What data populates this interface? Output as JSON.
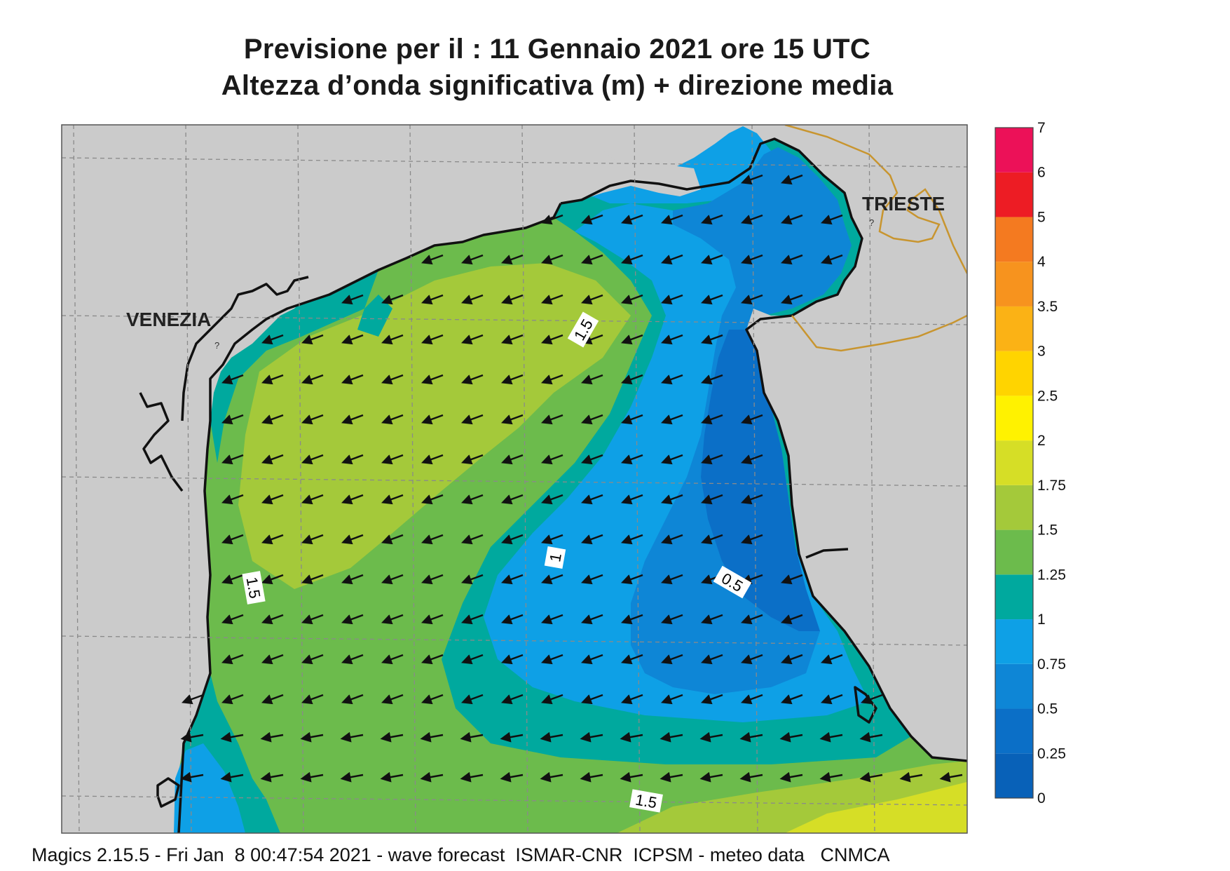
{
  "header": {
    "title_line1": "Previsione per il  :  11  Gennaio  2021   ore 15 UTC",
    "title_line2": "Altezza d’onda significativa (m) + direzione media"
  },
  "map": {
    "land_color": "#cbcbcb",
    "coast_color": "#111111",
    "border_color": "#c8952f",
    "grid_color": "#8a8a8a",
    "places": [
      {
        "name": "VENEZIA"
      },
      {
        "name": "TRIESTE"
      }
    ],
    "unknown_marks": [
      "?",
      "?"
    ],
    "contour_labels": [
      "1.5",
      "1.5",
      "1",
      "0.5",
      "1.5"
    ],
    "arrow_direction": "towards south-west",
    "arrow_icon": "wave-direction-arrow-icon"
  },
  "colorbar": {
    "label_unit": "m",
    "levels": [
      {
        "label": "0",
        "color": "#0861b8"
      },
      {
        "label": "0.25",
        "color": "#0b6fc7"
      },
      {
        "label": "0.5",
        "color": "#0e86d6"
      },
      {
        "label": "0.75",
        "color": "#0ea0e6"
      },
      {
        "label": "1",
        "color": "#00a99e"
      },
      {
        "label": "1.25",
        "color": "#6cbb4c"
      },
      {
        "label": "1.5",
        "color": "#a4c93a"
      },
      {
        "label": "1.75",
        "color": "#d6de26"
      },
      {
        "label": "2",
        "color": "#fff200"
      },
      {
        "label": "2.5",
        "color": "#ffd400"
      },
      {
        "label": "3",
        "color": "#fbb215"
      },
      {
        "label": "3.5",
        "color": "#f7931e"
      },
      {
        "label": "4",
        "color": "#f47a20"
      },
      {
        "label": "5",
        "color": "#ed1c24"
      },
      {
        "label": "6",
        "color": "#ec1158"
      },
      {
        "label": "7",
        "color": ""
      }
    ]
  },
  "footer": {
    "text": "Magics 2.15.5 - Fri Jan  8 00:47:54 2021 - wave forecast  ISMAR-CNR  ICPSM - meteo data   CNMCA"
  }
}
